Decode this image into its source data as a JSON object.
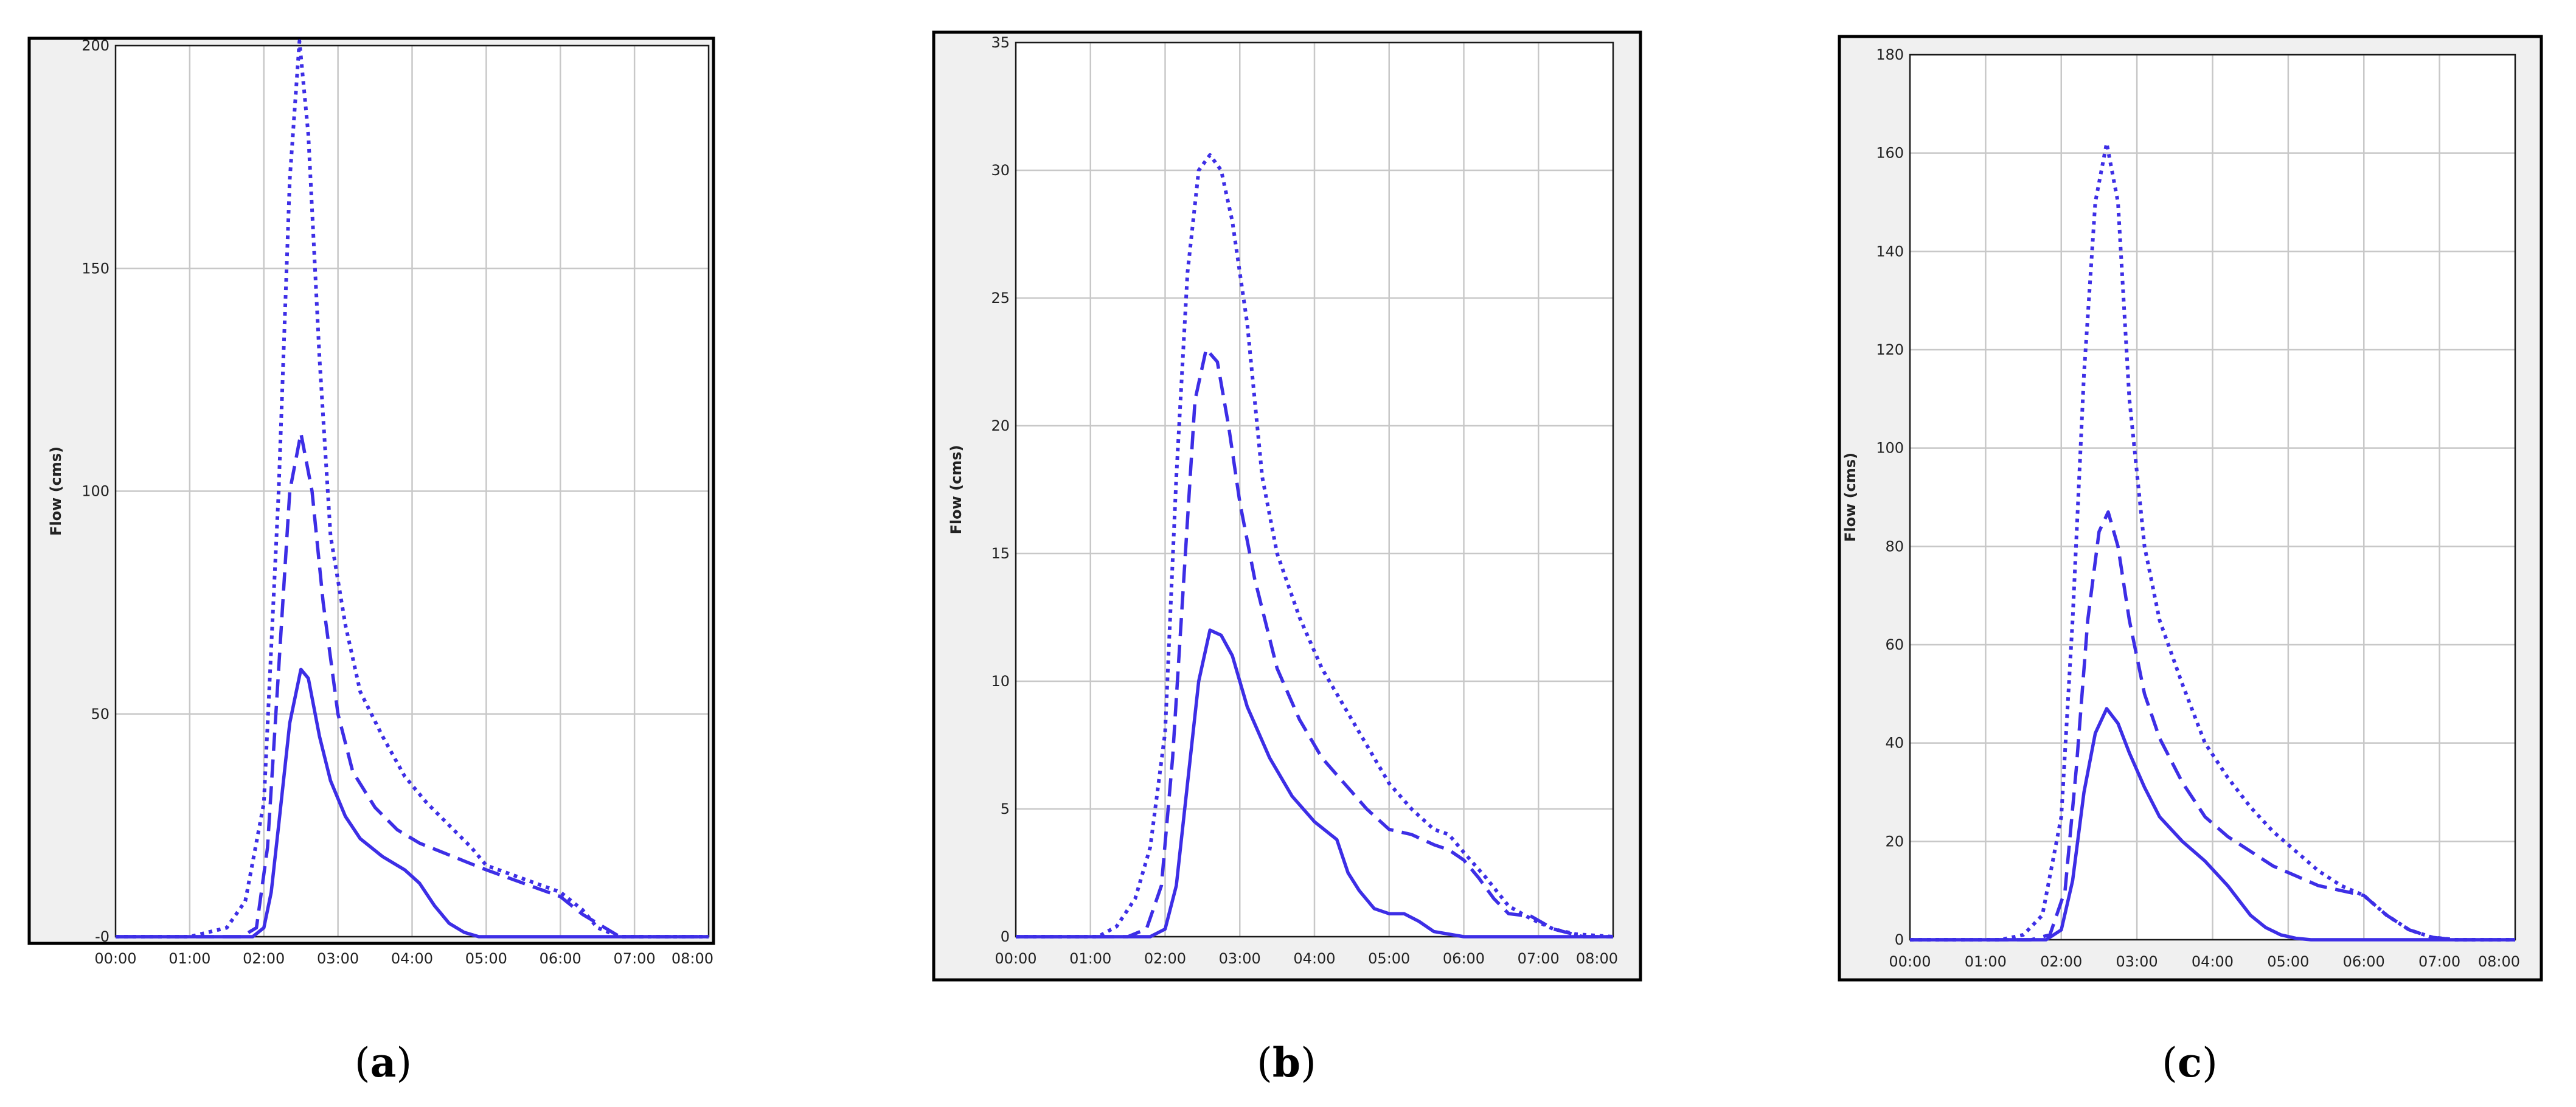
{
  "chart_data": [
    {
      "type": "line",
      "panel_label": "a",
      "ylabel": "Flow (cms)",
      "xlabel": "",
      "x_ticks": [
        "00:00",
        "01:00",
        "02:00",
        "03:00",
        "04:00",
        "05:00",
        "06:00",
        "07:00",
        "08:00"
      ],
      "y_ticks": [
        "-0",
        "50",
        "100",
        "150",
        "200"
      ],
      "xlim": [
        0,
        8
      ],
      "ylim": [
        0,
        200
      ],
      "grid": true,
      "series": [
        {
          "style": "dotted",
          "x": [
            0,
            1.0,
            1.5,
            1.75,
            2.0,
            2.2,
            2.35,
            2.48,
            2.6,
            2.75,
            2.9,
            3.1,
            3.3,
            3.6,
            3.9,
            4.2,
            4.5,
            4.8,
            5.0,
            5.5,
            6.0,
            6.3,
            6.5,
            6.8,
            7.0,
            8.0
          ],
          "y": [
            0,
            0,
            2,
            8,
            30,
            100,
            170,
            201,
            180,
            130,
            90,
            70,
            55,
            45,
            36,
            30,
            25,
            20,
            16,
            13,
            10,
            6,
            2,
            0,
            0,
            0
          ]
        },
        {
          "style": "dashed",
          "x": [
            0,
            1.7,
            1.9,
            2.05,
            2.2,
            2.35,
            2.5,
            2.65,
            2.8,
            3.0,
            3.2,
            3.5,
            3.8,
            4.1,
            4.4,
            4.7,
            5.0,
            5.5,
            6.0,
            6.3,
            6.6,
            6.8,
            7.0,
            8.0
          ],
          "y": [
            0,
            0,
            2,
            20,
            60,
            100,
            113,
            100,
            75,
            50,
            37,
            29,
            24,
            21,
            19,
            17,
            15,
            12,
            9,
            5,
            2,
            0,
            0,
            0
          ]
        },
        {
          "style": "solid",
          "x": [
            0,
            1.85,
            2.0,
            2.1,
            2.2,
            2.35,
            2.5,
            2.6,
            2.75,
            2.9,
            3.1,
            3.3,
            3.6,
            3.9,
            4.1,
            4.3,
            4.5,
            4.7,
            4.9,
            5.1,
            8.0
          ],
          "y": [
            0,
            0,
            2,
            10,
            25,
            48,
            60,
            58,
            45,
            35,
            27,
            22,
            18,
            15,
            12,
            7,
            3,
            1,
            0,
            0,
            0
          ]
        }
      ]
    },
    {
      "type": "line",
      "panel_label": "b",
      "ylabel": "Flow (cms)",
      "xlabel": "",
      "x_ticks": [
        "00:00",
        "01:00",
        "02:00",
        "03:00",
        "04:00",
        "05:00",
        "06:00",
        "07:00",
        "08:00"
      ],
      "y_ticks": [
        "0",
        "5",
        "10",
        "15",
        "20",
        "25",
        "30",
        "35"
      ],
      "xlim": [
        0,
        8
      ],
      "ylim": [
        0,
        35
      ],
      "grid": true,
      "series": [
        {
          "style": "dotted",
          "x": [
            0,
            1.1,
            1.35,
            1.6,
            1.8,
            2.0,
            2.15,
            2.3,
            2.45,
            2.6,
            2.75,
            2.9,
            3.1,
            3.3,
            3.5,
            3.8,
            4.1,
            4.4,
            4.7,
            5.0,
            5.3,
            5.6,
            5.8,
            6.0,
            6.3,
            6.6,
            6.9,
            7.2,
            7.5,
            8.0
          ],
          "y": [
            0,
            0,
            0.4,
            1.5,
            3.5,
            8,
            18,
            26,
            30,
            30.6,
            30,
            28,
            24,
            18,
            15,
            12.5,
            10.5,
            9,
            7.5,
            6,
            5,
            4.2,
            4,
            3.3,
            2.3,
            1.2,
            0.7,
            0.3,
            0.1,
            0
          ]
        },
        {
          "style": "dashed",
          "x": [
            0,
            1.5,
            1.75,
            1.95,
            2.1,
            2.25,
            2.4,
            2.55,
            2.7,
            2.85,
            3.0,
            3.2,
            3.5,
            3.8,
            4.1,
            4.4,
            4.7,
            5.0,
            5.3,
            5.6,
            5.8,
            6.0,
            6.2,
            6.4,
            6.6,
            6.9,
            7.2,
            7.6,
            8.0
          ],
          "y": [
            0,
            0,
            0.3,
            2,
            7,
            14,
            21,
            23,
            22.5,
            20,
            17,
            14,
            10.5,
            8.5,
            7,
            6,
            5,
            4.2,
            4,
            3.6,
            3.4,
            3,
            2.3,
            1.5,
            0.9,
            0.8,
            0.3,
            0,
            0
          ]
        },
        {
          "style": "solid",
          "x": [
            0,
            1.8,
            2.0,
            2.15,
            2.3,
            2.45,
            2.6,
            2.75,
            2.9,
            3.1,
            3.4,
            3.7,
            4.0,
            4.3,
            4.45,
            4.6,
            4.8,
            5.0,
            5.2,
            5.4,
            5.6,
            6.0,
            8.0
          ],
          "y": [
            0,
            0,
            0.3,
            2,
            6,
            10,
            12,
            11.8,
            11,
            9,
            7,
            5.5,
            4.5,
            3.8,
            2.5,
            1.8,
            1.1,
            0.9,
            0.9,
            0.6,
            0.2,
            0,
            0
          ]
        }
      ]
    },
    {
      "type": "line",
      "panel_label": "c",
      "ylabel": "Flow (cms)",
      "xlabel": "",
      "x_ticks": [
        "00:00",
        "01:00",
        "02:00",
        "03:00",
        "04:00",
        "05:00",
        "06:00",
        "07:00",
        "08:00"
      ],
      "y_ticks": [
        "0",
        "20",
        "40",
        "60",
        "80",
        "100",
        "120",
        "140",
        "160",
        "180"
      ],
      "xlim": [
        0,
        8
      ],
      "ylim": [
        0,
        180
      ],
      "grid": true,
      "series": [
        {
          "style": "dotted",
          "x": [
            0,
            1.2,
            1.5,
            1.75,
            2.0,
            2.15,
            2.3,
            2.45,
            2.6,
            2.75,
            2.9,
            3.1,
            3.3,
            3.6,
            3.9,
            4.2,
            4.5,
            4.8,
            5.1,
            5.4,
            5.7,
            6.0,
            6.3,
            6.6,
            6.9,
            7.2,
            8.0
          ],
          "y": [
            0,
            0,
            1,
            5,
            25,
            65,
            115,
            150,
            162,
            150,
            110,
            80,
            65,
            52,
            40,
            33,
            27,
            22,
            18,
            14,
            11,
            9,
            5,
            2,
            0.5,
            0,
            0
          ]
        },
        {
          "style": "dashed",
          "x": [
            0,
            1.6,
            1.85,
            2.05,
            2.2,
            2.35,
            2.5,
            2.62,
            2.75,
            2.9,
            3.1,
            3.3,
            3.6,
            3.9,
            4.2,
            4.5,
            4.8,
            5.1,
            5.4,
            5.7,
            6.0,
            6.3,
            6.6,
            6.9,
            7.2,
            8.0
          ],
          "y": [
            0,
            0,
            1,
            10,
            35,
            65,
            83,
            87,
            80,
            65,
            50,
            41,
            32,
            25,
            21,
            18,
            15,
            13,
            11,
            10,
            9,
            5,
            2,
            0.5,
            0,
            0
          ]
        },
        {
          "style": "solid",
          "x": [
            0,
            1.8,
            2.0,
            2.15,
            2.3,
            2.45,
            2.6,
            2.75,
            2.9,
            3.1,
            3.3,
            3.6,
            3.9,
            4.2,
            4.5,
            4.7,
            4.9,
            5.1,
            5.3,
            5.5,
            8.0
          ],
          "y": [
            0,
            0,
            2,
            12,
            30,
            42,
            47,
            44,
            38,
            31,
            25,
            20,
            16,
            11,
            5,
            2.5,
            1,
            0.3,
            0,
            0,
            0
          ]
        }
      ]
    }
  ]
}
